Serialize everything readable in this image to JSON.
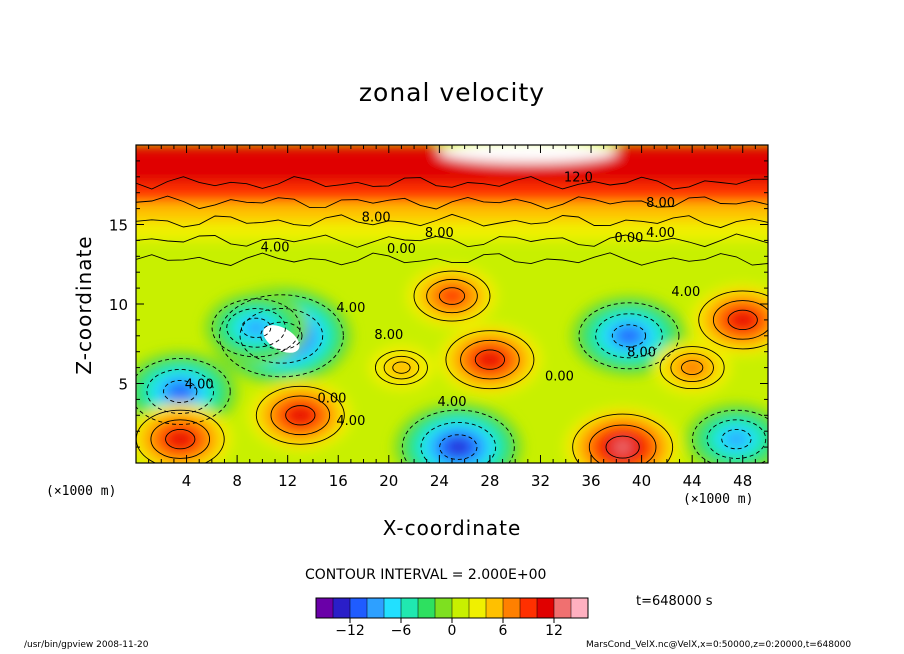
{
  "chart_data": {
    "type": "heatmap",
    "title": "zonal velocity",
    "xlabel": "X-coordinate",
    "ylabel": "Z-coordinate",
    "x_unit_left": "(×1000 m)",
    "x_unit_right": "(×1000 m)",
    "x_ticks": [
      4,
      8,
      12,
      16,
      20,
      24,
      28,
      32,
      36,
      40,
      44,
      48
    ],
    "y_ticks": [
      5,
      10,
      15
    ],
    "xlim": [
      0,
      50
    ],
    "ylim": [
      0,
      20
    ],
    "contour_interval_text": "CONTOUR INTERVAL = 2.000E+00",
    "time_text": "t=648000 s",
    "colorbar": {
      "range": [
        -16,
        16
      ],
      "ticks": [
        -12,
        -6,
        0,
        6,
        12
      ],
      "colors": [
        "#6a00a8",
        "#2a1ec8",
        "#1f5cff",
        "#2ea0ff",
        "#22e0ff",
        "#20e8b0",
        "#2ee060",
        "#7ee020",
        "#c8f000",
        "#f0f000",
        "#ffc000",
        "#ff8000",
        "#ff3000",
        "#e00000",
        "#f07070",
        "#ffb0c0"
      ]
    },
    "features": [
      {
        "x": 11.5,
        "z": 8.0,
        "value": -16
      },
      {
        "x": 9.5,
        "z": 8.5,
        "value": -10
      },
      {
        "x": 3.5,
        "z": 4.5,
        "value": -12
      },
      {
        "x": 39.0,
        "z": 8.0,
        "value": -12
      },
      {
        "x": 25.5,
        "z": 1.0,
        "value": -14
      },
      {
        "x": 47.5,
        "z": 1.5,
        "value": -10
      },
      {
        "x": 13.0,
        "z": 3.0,
        "value": 10
      },
      {
        "x": 3.5,
        "z": 1.5,
        "value": 10
      },
      {
        "x": 38.5,
        "z": 1.0,
        "value": 12
      },
      {
        "x": 28.0,
        "z": 6.5,
        "value": 10
      },
      {
        "x": 48.0,
        "z": 9.0,
        "value": 10
      },
      {
        "x": 25.0,
        "z": 10.5,
        "value": 8
      },
      {
        "x": 21.0,
        "z": 6.0,
        "value": 4
      },
      {
        "x": 44.0,
        "z": 6.0,
        "value": 6
      }
    ],
    "contour_labels": [
      {
        "x": 35.0,
        "z": 17.7,
        "text": "12.0"
      },
      {
        "x": 41.5,
        "z": 16.1,
        "text": "8.00"
      },
      {
        "x": 19.0,
        "z": 15.2,
        "text": "8.00"
      },
      {
        "x": 24.0,
        "z": 14.2,
        "text": "8.00"
      },
      {
        "x": 11.0,
        "z": 13.3,
        "text": "4.00"
      },
      {
        "x": 21.0,
        "z": 13.2,
        "text": "0.00"
      },
      {
        "x": 39.0,
        "z": 13.9,
        "text": "0.00"
      },
      {
        "x": 41.5,
        "z": 14.2,
        "text": "4.00"
      },
      {
        "x": 17.0,
        "z": 9.5,
        "text": "4.00"
      },
      {
        "x": 20.0,
        "z": 7.8,
        "text": "8.00"
      },
      {
        "x": 5.0,
        "z": 4.7,
        "text": "4.00"
      },
      {
        "x": 15.5,
        "z": 3.8,
        "text": "0.00"
      },
      {
        "x": 17.0,
        "z": 2.4,
        "text": "4.00"
      },
      {
        "x": 25.0,
        "z": 3.6,
        "text": "4.00"
      },
      {
        "x": 33.5,
        "z": 5.2,
        "text": "0.00"
      },
      {
        "x": 40.0,
        "z": 6.7,
        "text": "8.00"
      },
      {
        "x": 43.5,
        "z": 10.5,
        "text": "4.00"
      }
    ]
  },
  "footer": {
    "left": "/usr/bin/gpview   2008-11-20",
    "right": "MarsCond_VelX.nc@VelX,x=0:50000,z=0:20000,t=648000"
  }
}
